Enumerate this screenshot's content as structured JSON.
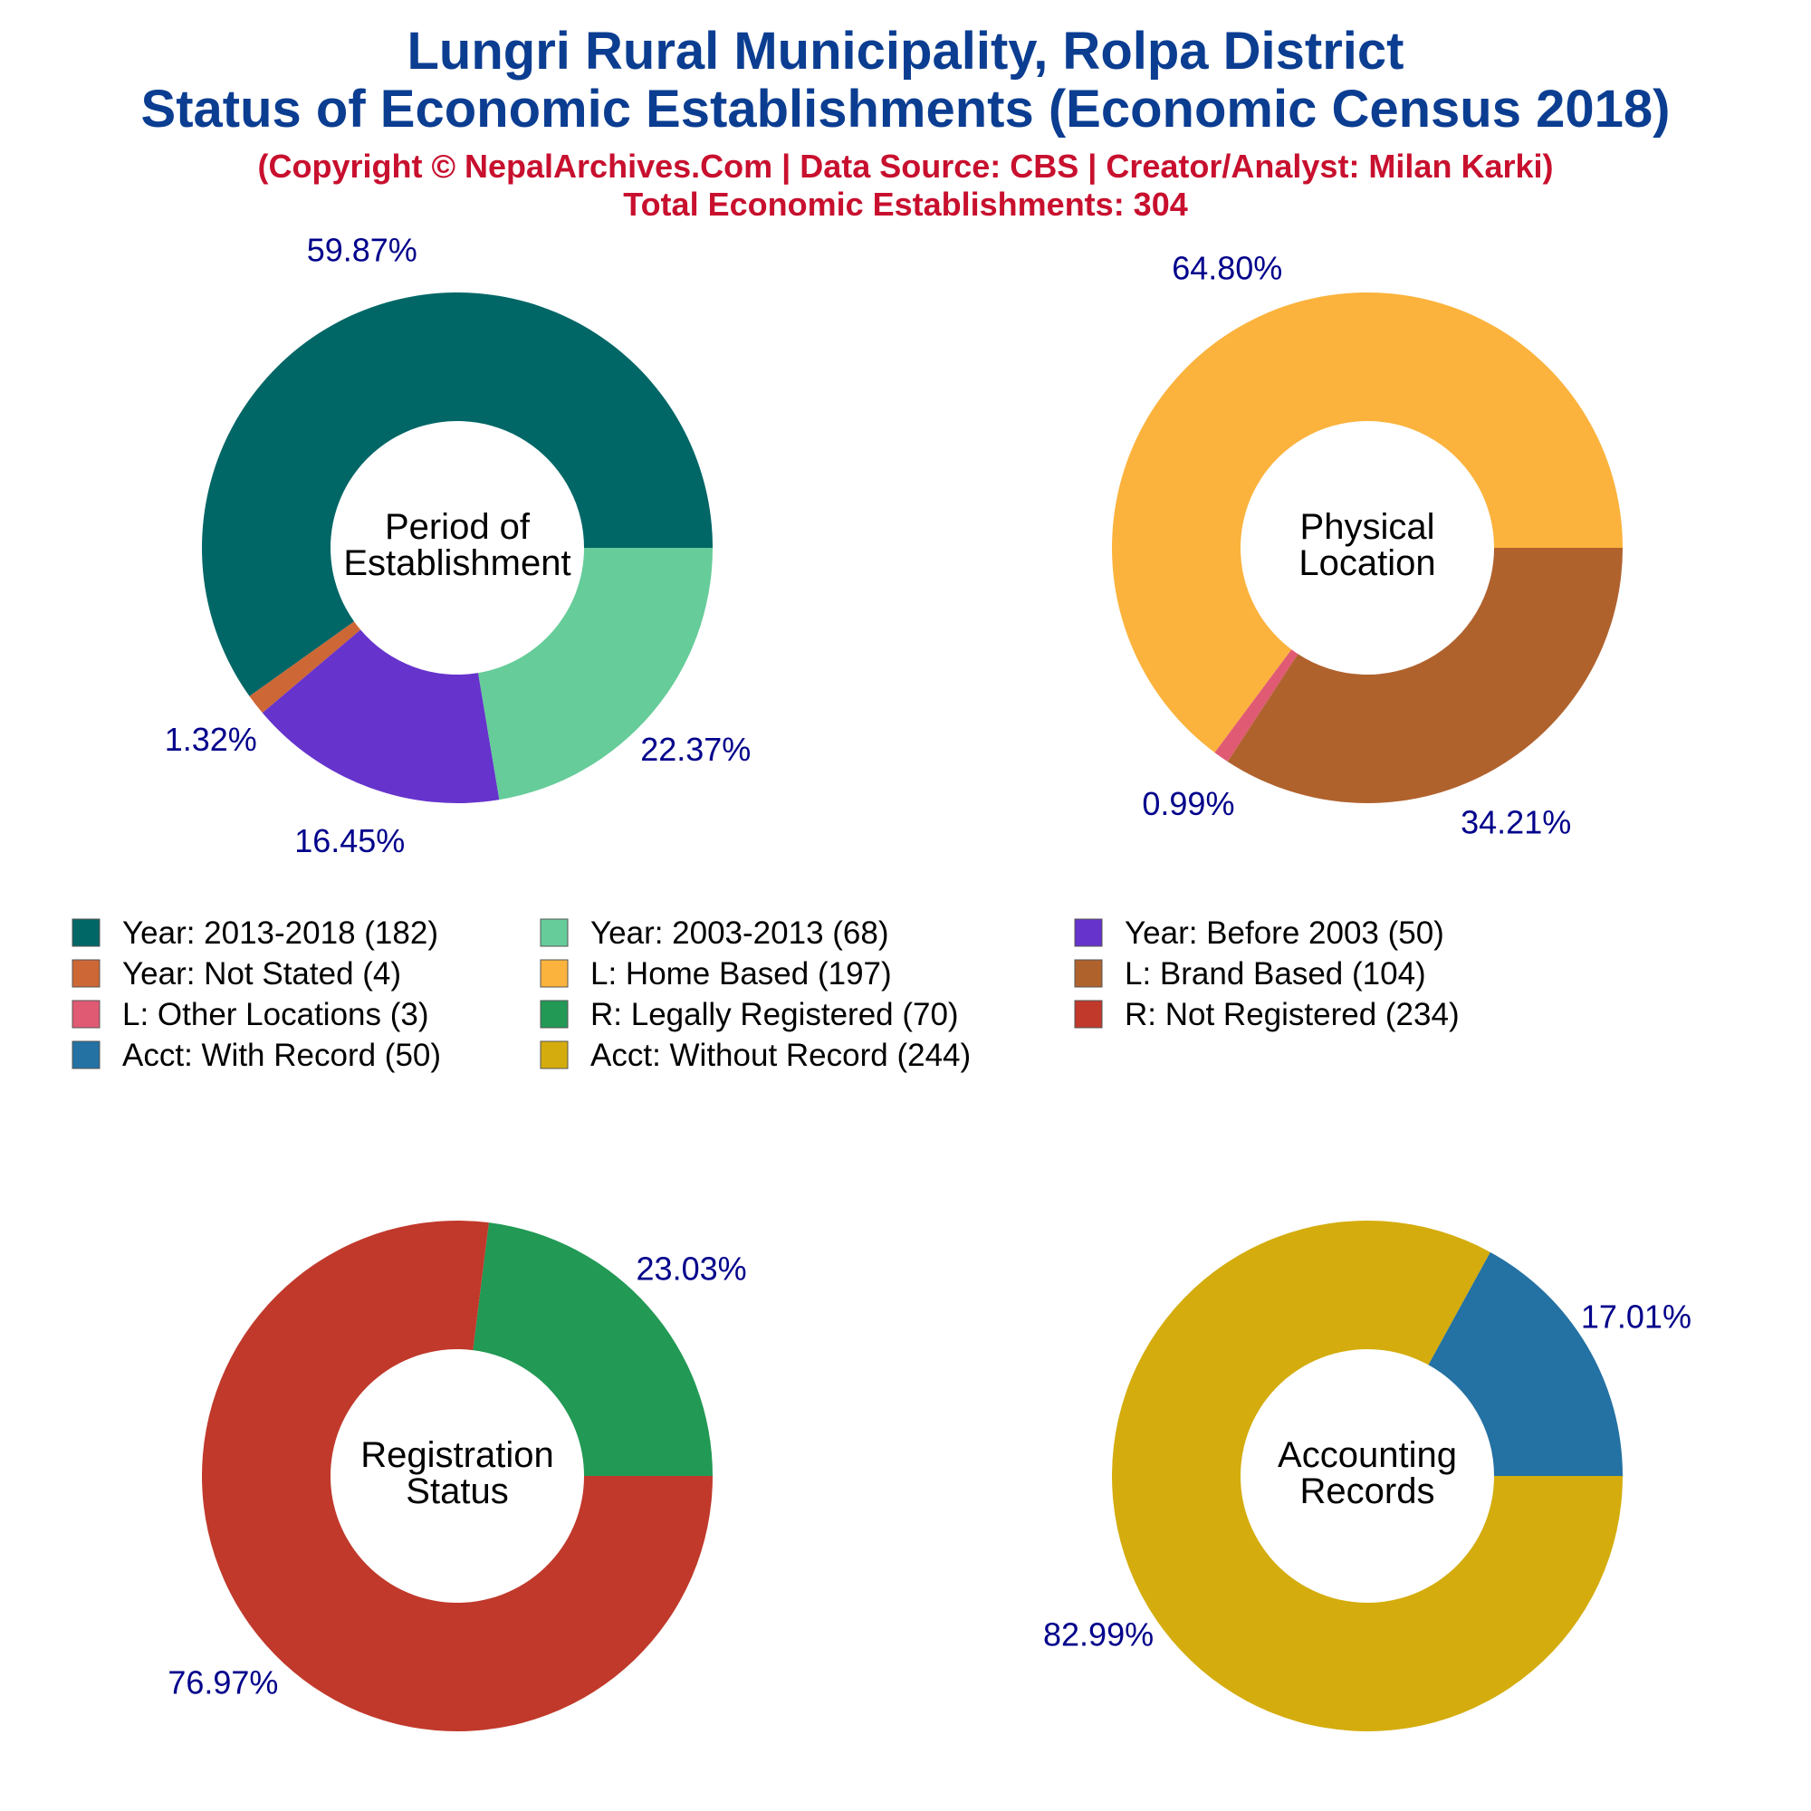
{
  "chart_data": {
    "title_line1": "Lungri Rural Municipality, Rolpa District",
    "title_line2": "Status of Economic Establishments (Economic Census 2018)",
    "subtitle_line1": "(Copyright © NepalArchives.Com | Data Source: CBS | Creator/Analyst: Milan Karki)",
    "subtitle_line2": "Total Economic Establishments: 304",
    "charts": [
      {
        "type": "pie",
        "center_label": [
          "Period of",
          "Establishment"
        ],
        "slices": [
          {
            "legend": "Year: 2013-2018 (182)",
            "value": 182,
            "pct_label": "59.87%",
            "color": "#006666"
          },
          {
            "legend": "Year: Not Stated (4)",
            "value": 4,
            "pct_label": "1.32%",
            "color": "#cd6736"
          },
          {
            "legend": "Year: Before 2003 (50)",
            "value": 50,
            "pct_label": "16.45%",
            "color": "#6633cc"
          },
          {
            "legend": "Year: 2003-2013 (68)",
            "value": 68,
            "pct_label": "22.37%",
            "color": "#66cc99"
          }
        ]
      },
      {
        "type": "pie",
        "center_label": [
          "Physical",
          "Location"
        ],
        "slices": [
          {
            "legend": "L: Home Based (197)",
            "value": 197,
            "pct_label": "64.80%",
            "color": "#fbb33d"
          },
          {
            "legend": "L: Other Locations (3)",
            "value": 3,
            "pct_label": "0.99%",
            "color": "#e05a74"
          },
          {
            "legend": "L: Brand Based (104)",
            "value": 104,
            "pct_label": "34.21%",
            "color": "#b0622d"
          }
        ]
      },
      {
        "type": "pie",
        "center_label": [
          "Registration",
          "Status"
        ],
        "slices": [
          {
            "legend": "R: Legally Registered (70)",
            "value": 70,
            "pct_label": "23.03%",
            "color": "#229955"
          },
          {
            "legend": "R: Not Registered (234)",
            "value": 234,
            "pct_label": "76.97%",
            "color": "#c0392b"
          }
        ]
      },
      {
        "type": "pie",
        "center_label": [
          "Accounting",
          "Records"
        ],
        "slices": [
          {
            "legend": "Acct: With Record (50)",
            "value": 50,
            "pct_label": "17.01%",
            "color": "#2471a3"
          },
          {
            "legend": "Acct: Without Record (244)",
            "value": 244,
            "pct_label": "82.99%",
            "color": "#d4ac0d"
          }
        ]
      }
    ],
    "legend": [
      {
        "label": "Year: 2013-2018 (182)",
        "color": "#006666"
      },
      {
        "label": "Year: 2003-2013 (68)",
        "color": "#66cc99"
      },
      {
        "label": "Year: Before 2003 (50)",
        "color": "#6633cc"
      },
      {
        "label": "Year: Not Stated (4)",
        "color": "#cd6736"
      },
      {
        "label": "L: Home Based (197)",
        "color": "#fbb33d"
      },
      {
        "label": "L: Brand Based (104)",
        "color": "#b0622d"
      },
      {
        "label": "L: Other Locations (3)",
        "color": "#e05a74"
      },
      {
        "label": "R: Legally Registered (70)",
        "color": "#229955"
      },
      {
        "label": "R: Not Registered (234)",
        "color": "#c0392b"
      },
      {
        "label": "Acct: With Record (50)",
        "color": "#2471a3"
      },
      {
        "label": "Acct: Without Record (244)",
        "color": "#d4ac0d"
      }
    ],
    "legend_placement": "center"
  }
}
